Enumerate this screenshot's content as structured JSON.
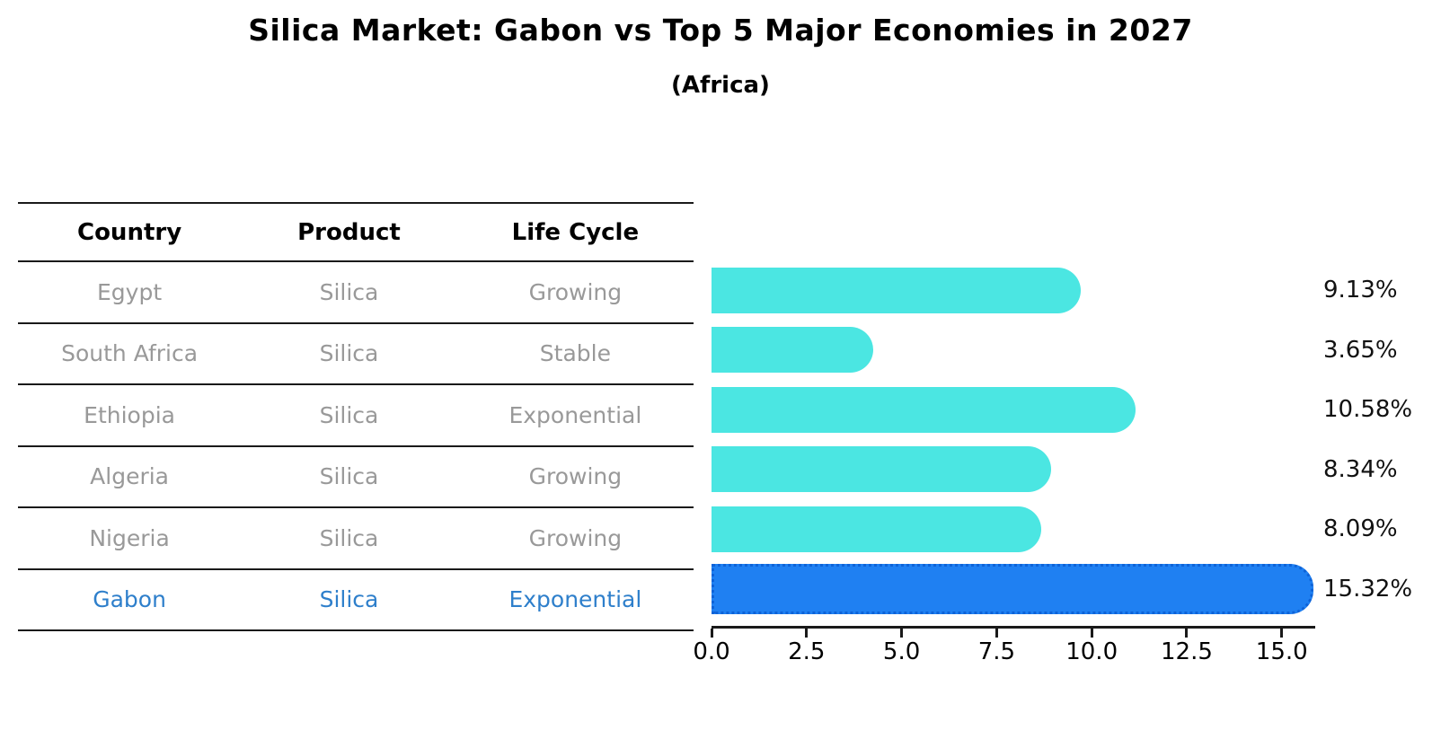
{
  "title": "Silica Market: Gabon vs Top 5 Major Economies in 2027",
  "subtitle": "(Africa)",
  "table": {
    "headers": [
      "Country",
      "Product",
      "Life Cycle"
    ],
    "rows": [
      {
        "country": "Egypt",
        "product": "Silica",
        "life_cycle": "Growing",
        "highlight": false
      },
      {
        "country": "South Africa",
        "product": "Silica",
        "life_cycle": "Stable",
        "highlight": false
      },
      {
        "country": "Ethiopia",
        "product": "Silica",
        "life_cycle": "Exponential",
        "highlight": false
      },
      {
        "country": "Algeria",
        "product": "Silica",
        "life_cycle": "Growing",
        "highlight": false
      },
      {
        "country": "Nigeria",
        "product": "Silica",
        "life_cycle": "Growing",
        "highlight": false
      },
      {
        "country": "Gabon",
        "product": "Silica",
        "life_cycle": "Exponential",
        "highlight": true
      }
    ]
  },
  "chart_data": {
    "type": "bar",
    "orientation": "horizontal",
    "title": "Silica Market: Gabon vs Top 5 Major Economies in 2027",
    "subtitle": "(Africa)",
    "categories": [
      "Egypt",
      "South Africa",
      "Ethiopia",
      "Algeria",
      "Nigeria",
      "Gabon"
    ],
    "values": [
      9.13,
      3.65,
      10.58,
      8.34,
      8.09,
      15.32
    ],
    "value_labels": [
      "9.13%",
      "3.65%",
      "10.58%",
      "8.34%",
      "8.09%",
      "15.32%"
    ],
    "xticks": [
      "0.0",
      "2.5",
      "5.0",
      "7.5",
      "10.0",
      "12.5",
      "15.0"
    ],
    "xtick_values": [
      0,
      2.5,
      5,
      7.5,
      10,
      12.5,
      15
    ],
    "xlim": [
      0,
      15.88
    ],
    "grid": false,
    "legend": false,
    "bar_color": "#4be6e2",
    "highlight_color": "#1f80f2",
    "highlight_index": 5,
    "highlight_text_color": "#2e7fcb"
  }
}
